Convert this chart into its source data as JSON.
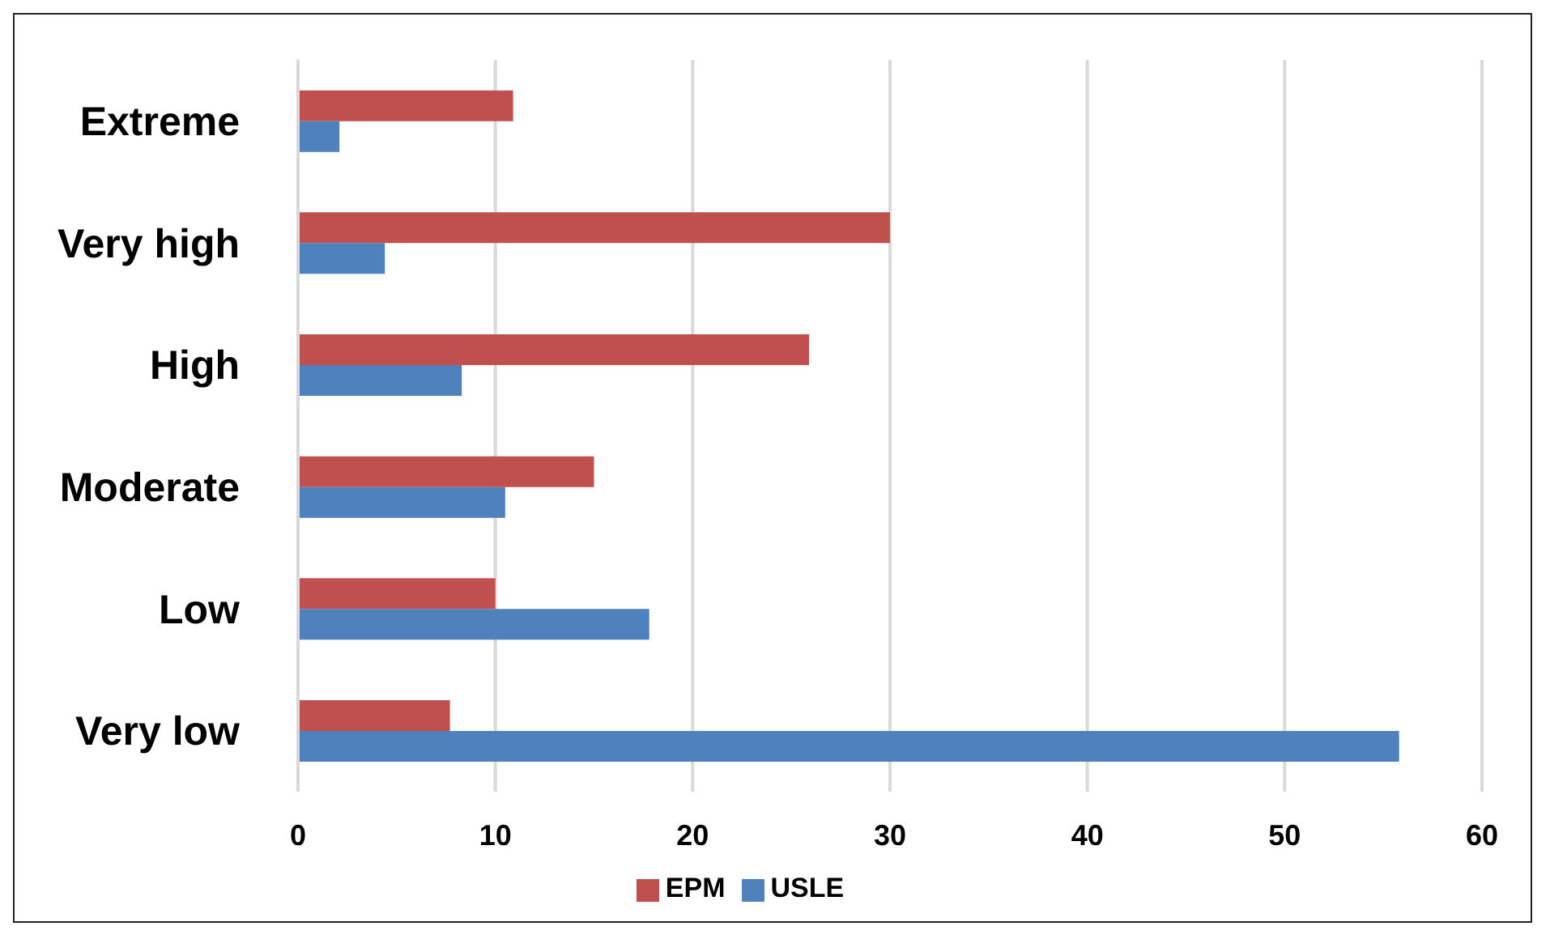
{
  "chart_data": {
    "type": "bar",
    "orientation": "horizontal",
    "categories": [
      "Extreme",
      "Very high",
      "High",
      "Moderate",
      "Low",
      "Very low"
    ],
    "series": [
      {
        "name": "EPM",
        "color": "#c0504d",
        "values": [
          10.9,
          30,
          25.9,
          15,
          10,
          7.7
        ]
      },
      {
        "name": "USLE",
        "color": "#4f81bd",
        "values": [
          2.1,
          4.4,
          8.3,
          10.5,
          17.8,
          55.8
        ]
      }
    ],
    "xlim": [
      0,
      60
    ],
    "xticks": [
      0,
      10,
      20,
      30,
      40,
      50,
      60
    ],
    "grid": "x",
    "legend": "bottom"
  }
}
